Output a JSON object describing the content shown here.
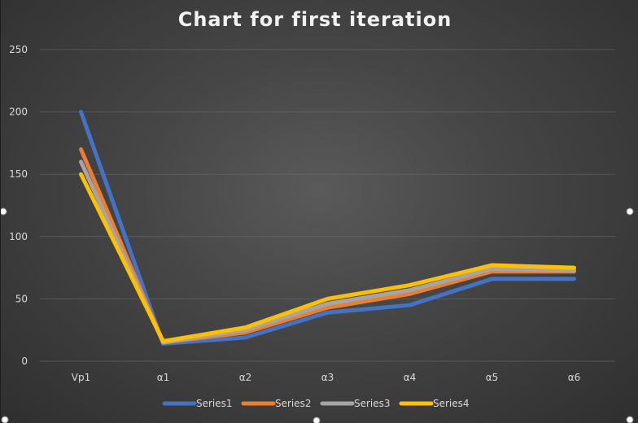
{
  "chart_data": {
    "type": "line",
    "title": "Chart for first iteration",
    "categories": [
      "Vp1",
      "α1",
      "α2",
      "α3",
      "α4",
      "α5",
      "α6"
    ],
    "ylim": [
      0,
      250
    ],
    "yticks": [
      0,
      50,
      100,
      150,
      200,
      250
    ],
    "grid": true,
    "legend": "bottom",
    "series": [
      {
        "name": "Series1",
        "color": "#4472c4",
        "values": [
          200,
          14,
          19,
          39,
          45,
          66,
          66
        ]
      },
      {
        "name": "Series2",
        "color": "#ed7d31",
        "values": [
          170,
          15,
          23,
          43,
          54,
          72,
          72
        ]
      },
      {
        "name": "Series3",
        "color": "#a5a5a5",
        "values": [
          160,
          15,
          25,
          46,
          57,
          74,
          73
        ]
      },
      {
        "name": "Series4",
        "color": "#ffc000",
        "values": [
          150,
          16,
          27,
          50,
          61,
          77,
          75
        ]
      }
    ]
  }
}
